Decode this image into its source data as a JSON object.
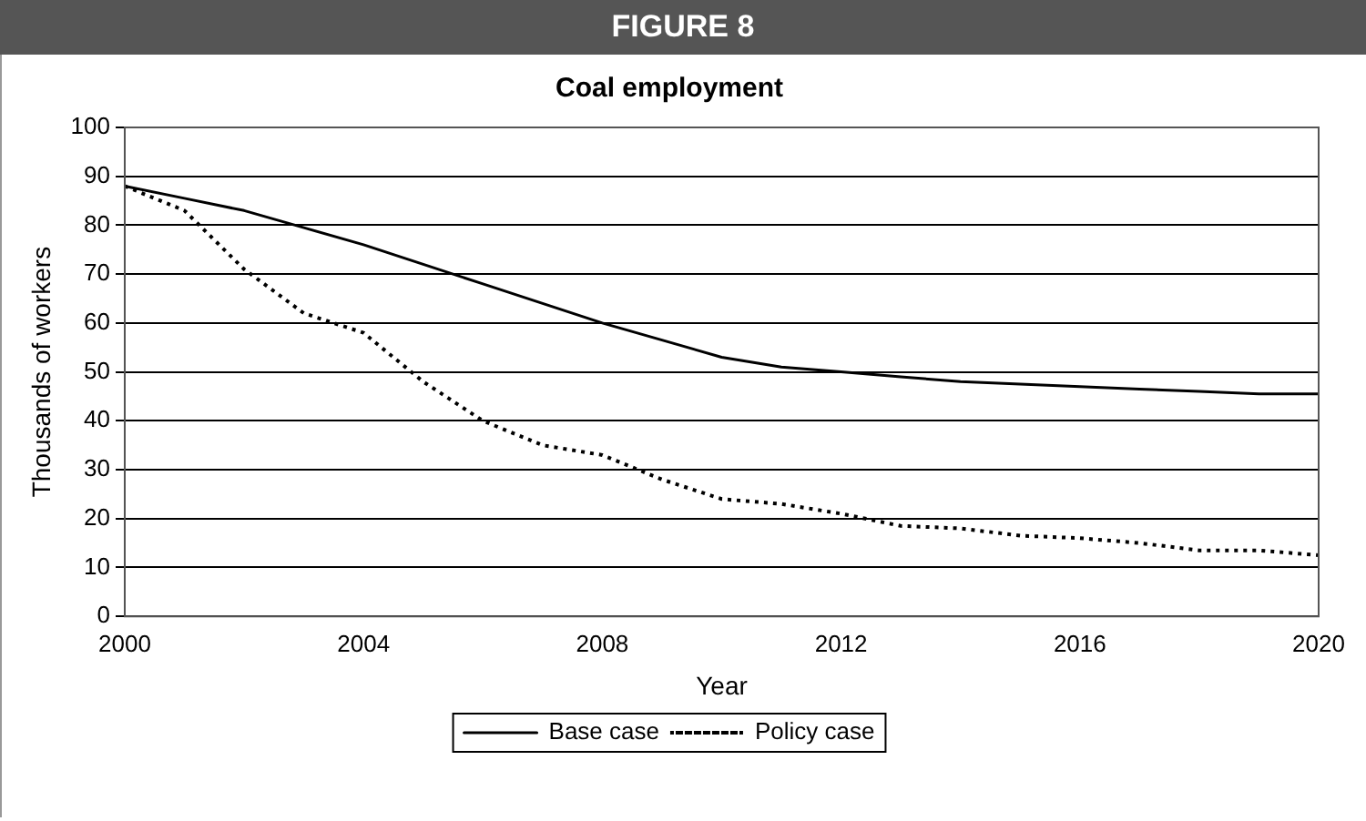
{
  "chart_data": {
    "type": "line",
    "title": "FIGURE 8",
    "subtitle": "Coal employment",
    "xlabel": "Year",
    "ylabel": "Thousands of workers",
    "x": [
      2000,
      2001,
      2002,
      2003,
      2004,
      2005,
      2006,
      2007,
      2008,
      2009,
      2010,
      2011,
      2012,
      2013,
      2014,
      2015,
      2016,
      2017,
      2018,
      2019,
      2020
    ],
    "series": [
      {
        "name": "Base case",
        "color": "#000000",
        "line_style": "solid",
        "values": [
          88,
          85.5,
          83,
          79.5,
          76,
          72,
          68,
          64,
          60,
          56.5,
          53,
          51,
          50,
          49,
          48,
          47.5,
          47,
          46.5,
          46,
          45.5,
          45.5
        ]
      },
      {
        "name": "Policy case",
        "color": "#000000",
        "line_style": "dotted",
        "values": [
          88,
          83,
          71,
          62,
          58,
          48,
          40,
          35,
          33,
          28,
          24,
          23,
          21,
          18.5,
          18,
          16.5,
          16,
          15,
          13.5,
          13.5,
          12.5
        ]
      }
    ],
    "xlim": [
      2000,
      2020
    ],
    "xticks": [
      2000,
      2004,
      2008,
      2012,
      2016,
      2020
    ],
    "ylim": [
      0,
      100
    ],
    "yticks": [
      0,
      10,
      20,
      30,
      40,
      50,
      60,
      70,
      80,
      90,
      100
    ],
    "grid": "y",
    "legend": "bottom",
    "marker": "none"
  }
}
